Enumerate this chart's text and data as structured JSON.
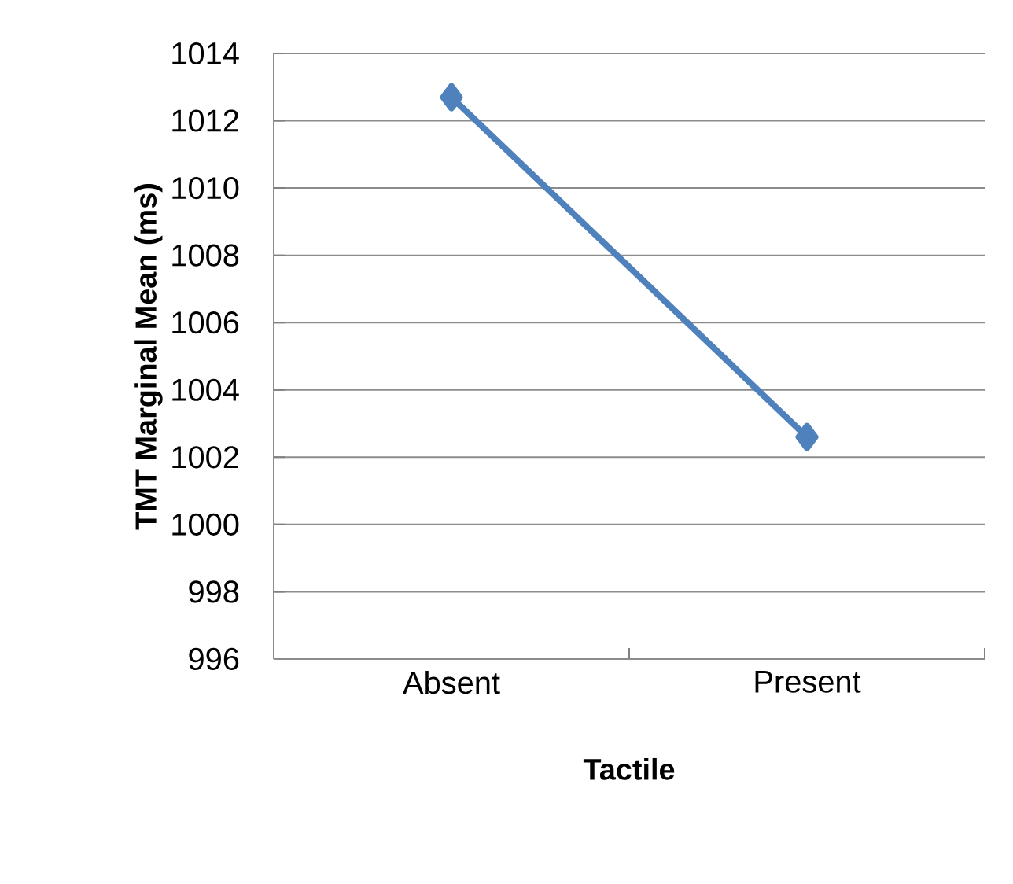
{
  "chart_data": {
    "type": "line",
    "xlabel": "Tactile",
    "ylabel": "TMT Marginal Mean (ms)",
    "categories": [
      "Absent",
      "Present"
    ],
    "series": [
      {
        "color": "#4f81bd",
        "values": [
          1012.7,
          1002.6
        ]
      }
    ],
    "ylim": [
      996,
      1014
    ],
    "yticks": [
      996,
      998,
      1000,
      1002,
      1004,
      1006,
      1008,
      1010,
      1012,
      1014
    ],
    "grid": "y",
    "marker": "diamond",
    "line_style": "solid"
  }
}
